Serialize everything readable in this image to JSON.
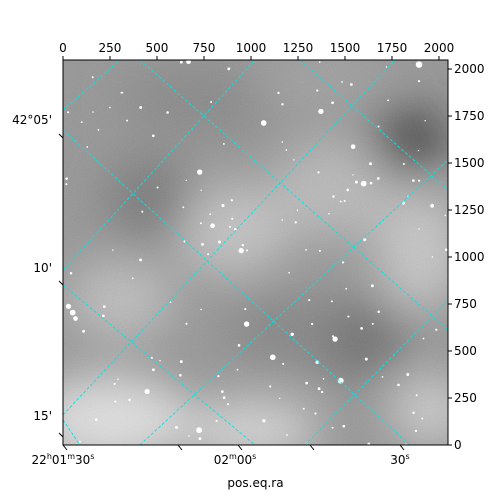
{
  "chart_data": {
    "type": "image",
    "xlabel": "pos.eq.ra",
    "top_axis": {
      "ticks": [
        0,
        250,
        500,
        750,
        1000,
        1250,
        1500,
        1750,
        2000
      ],
      "range": [
        0,
        2048
      ]
    },
    "right_axis": {
      "ticks": [
        0,
        250,
        500,
        750,
        1000,
        1250,
        1500,
        1750,
        2000
      ],
      "range": [
        0,
        2048
      ]
    },
    "ra_ticks": [
      {
        "label": "22h01m30s",
        "main": "22",
        "sup1": "h",
        "mid": "01",
        "sup2": "m",
        "tail": "30",
        "sup3": "s"
      },
      {
        "label": "02m00s",
        "main": "02",
        "sup1": "m",
        "mid": "00",
        "sup2": "s",
        "tail": "",
        "sup3": ""
      },
      {
        "label": "30s",
        "main": "30",
        "sup1": "s",
        "mid": "",
        "sup2": "",
        "tail": "",
        "sup3": ""
      }
    ],
    "dec_ticks": [
      "42°05'",
      "10'",
      "15'"
    ],
    "grid": true,
    "grid_color": "#00e5e5",
    "image": "grayscale sky image with stars"
  }
}
